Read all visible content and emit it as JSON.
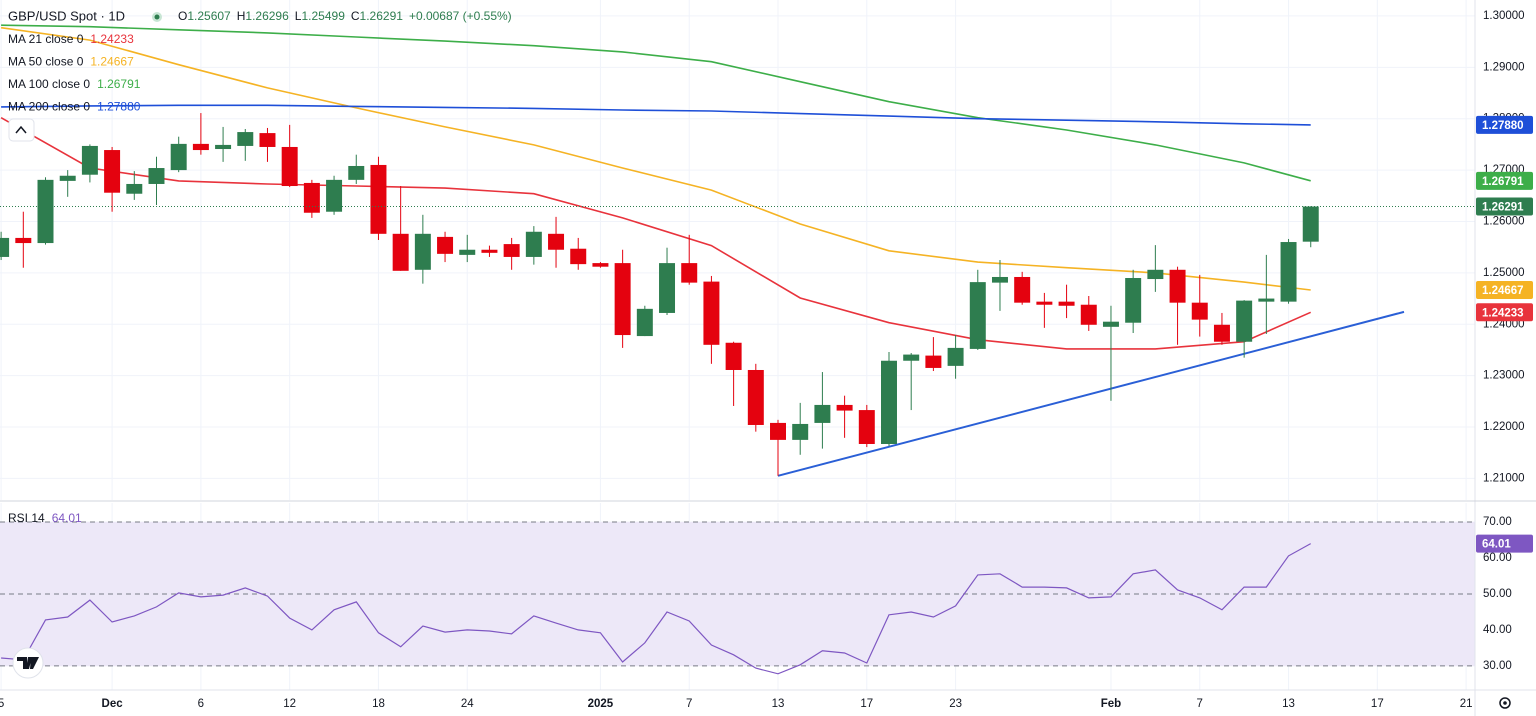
{
  "chart_data": [
    {
      "type": "candlestick",
      "title": "GBP/USD Spot · 1D",
      "ohlc_legend": [
        {
          "key": "O",
          "value": "1.25607"
        },
        {
          "key": "H",
          "value": "1.26296"
        },
        {
          "key": "L",
          "value": "1.25499"
        },
        {
          "key": "C",
          "value": "1.26291"
        }
      ],
      "change_label": "+0.00687 (+0.55%)",
      "up_color": "#2e7d4f",
      "down_color": "#e4020f",
      "x": [
        0,
        1,
        2,
        3,
        4,
        5,
        6,
        7,
        8,
        9,
        10,
        11,
        12,
        13,
        14,
        15,
        16,
        17,
        18,
        19,
        20,
        21,
        22,
        23,
        24,
        25,
        26,
        27,
        28,
        29,
        30,
        31,
        32,
        33,
        34,
        35,
        36,
        37,
        38,
        39,
        40,
        41,
        42,
        43,
        44,
        45,
        46,
        47,
        48,
        49,
        50,
        51,
        52,
        53,
        54,
        55,
        56,
        57,
        58,
        59
      ],
      "open": [
        1.2531,
        1.2568,
        1.2558,
        1.2679,
        1.2691,
        1.2739,
        1.2654,
        1.2673,
        1.27,
        1.2751,
        1.2741,
        1.2747,
        1.2772,
        1.2745,
        1.2675,
        1.2619,
        1.2681,
        1.271,
        1.2576,
        1.2506,
        1.257,
        1.2535,
        1.2545,
        1.2556,
        1.2531,
        1.2576,
        1.2547,
        1.2519,
        1.2519,
        1.2377,
        1.2422,
        1.2519,
        1.2483,
        1.2364,
        1.2311,
        1.2208,
        1.2175,
        1.2208,
        1.2243,
        1.2233,
        1.2167,
        1.2329,
        1.2339,
        1.2319,
        1.2352,
        1.2481,
        1.2492,
        1.2444,
        1.2444,
        1.2438,
        1.2395,
        1.2403,
        1.2488,
        1.2506,
        1.2442,
        1.2399,
        1.2366,
        1.2444,
        1.2444,
        1.25607
      ],
      "high": [
        1.258,
        1.2619,
        1.2686,
        1.27,
        1.275,
        1.2745,
        1.2698,
        1.2726,
        1.2765,
        1.2811,
        1.2784,
        1.278,
        1.2782,
        1.2788,
        1.2681,
        1.2689,
        1.273,
        1.2726,
        1.2669,
        1.2613,
        1.258,
        1.2574,
        1.2553,
        1.2568,
        1.2591,
        1.2609,
        1.2568,
        1.2521,
        1.2545,
        1.2436,
        1.2549,
        1.2574,
        1.2494,
        1.2366,
        1.2323,
        1.2214,
        1.2247,
        1.2307,
        1.2261,
        1.2243,
        1.2346,
        1.2344,
        1.2375,
        1.2379,
        1.2506,
        1.2525,
        1.2502,
        1.2461,
        1.2477,
        1.2455,
        1.2436,
        1.2506,
        1.2554,
        1.2512,
        1.2496,
        1.2422,
        1.2447,
        1.2535,
        1.2566,
        1.26296
      ],
      "low": [
        1.2525,
        1.251,
        1.2555,
        1.2648,
        1.2676,
        1.2619,
        1.2642,
        1.2632,
        1.2696,
        1.273,
        1.2716,
        1.2718,
        1.2716,
        1.2667,
        1.2607,
        1.2613,
        1.2673,
        1.2564,
        1.2504,
        1.2479,
        1.2521,
        1.2521,
        1.2531,
        1.2506,
        1.2516,
        1.251,
        1.2506,
        1.251,
        1.2354,
        1.2377,
        1.2418,
        1.2477,
        1.2323,
        1.2241,
        1.2191,
        1.2105,
        1.2146,
        1.2158,
        1.2179,
        1.2161,
        1.2163,
        1.2233,
        1.2309,
        1.2294,
        1.235,
        1.2426,
        1.2438,
        1.2393,
        1.2412,
        1.2387,
        1.2251,
        1.2383,
        1.2463,
        1.236,
        1.2376,
        1.236,
        1.2335,
        1.2381,
        1.244,
        1.25499
      ],
      "close": [
        1.2568,
        1.2558,
        1.2681,
        1.2689,
        1.2747,
        1.2656,
        1.2673,
        1.2704,
        1.2751,
        1.2739,
        1.2749,
        1.2774,
        1.2745,
        1.2669,
        1.2617,
        1.2681,
        1.2708,
        1.2576,
        1.2504,
        1.2576,
        1.2537,
        1.2545,
        1.2539,
        1.2531,
        1.258,
        1.2545,
        1.2517,
        1.2512,
        1.2379,
        1.243,
        1.2519,
        1.2481,
        1.236,
        1.2311,
        1.2204,
        1.2175,
        1.2206,
        1.2243,
        1.2232,
        1.2167,
        1.2329,
        1.2341,
        1.2315,
        1.2354,
        1.2482,
        1.2492,
        1.2442,
        1.2438,
        1.2436,
        1.2399,
        1.2405,
        1.249,
        1.2506,
        1.2442,
        1.2409,
        1.2366,
        1.2446,
        1.245,
        1.256,
        1.26291
      ],
      "last_price_label": "1.26291",
      "xlim": [
        -0.05,
        66.4
      ],
      "xticks": [
        {
          "value": 0,
          "label": "5"
        },
        {
          "value": 5,
          "label": "Dec"
        },
        {
          "value": 9,
          "label": "6"
        },
        {
          "value": 13,
          "label": "12"
        },
        {
          "value": 17,
          "label": "18"
        },
        {
          "value": 21,
          "label": "24"
        },
        {
          "value": 27,
          "label": "2025"
        },
        {
          "value": 31,
          "label": "7"
        },
        {
          "value": 35,
          "label": "13"
        },
        {
          "value": 39,
          "label": "17"
        },
        {
          "value": 43,
          "label": "23"
        },
        {
          "value": 50,
          "label": "Feb"
        },
        {
          "value": 54,
          "label": "7"
        },
        {
          "value": 58,
          "label": "13"
        },
        {
          "value": 62,
          "label": "17"
        },
        {
          "value": 66,
          "label": "21"
        }
      ],
      "ylim": [
        1.2058,
        1.3031
      ],
      "yticks": [
        {
          "value": 1.3,
          "label": "1.30000"
        },
        {
          "value": 1.29,
          "label": "1.29000"
        },
        {
          "value": 1.28,
          "label": "1.28000"
        },
        {
          "value": 1.27,
          "label": "1.27000"
        },
        {
          "value": 1.26,
          "label": "1.26000"
        },
        {
          "value": 1.25,
          "label": "1.25000"
        },
        {
          "value": 1.24,
          "label": "1.24000"
        },
        {
          "value": 1.23,
          "label": "1.23000"
        },
        {
          "value": 1.22,
          "label": "1.22000"
        },
        {
          "value": 1.21,
          "label": "1.21000"
        }
      ],
      "grid": true,
      "series": [
        {
          "name": "MA 21 close 0",
          "color": "#e8333c",
          "last_label": "1.24233",
          "x": [
            0,
            4,
            8,
            12,
            16,
            20,
            24,
            28,
            32,
            36,
            40,
            44,
            48,
            52,
            56,
            59
          ],
          "values": [
            1.2802,
            1.2704,
            1.2679,
            1.2673,
            1.2669,
            1.2665,
            1.2654,
            1.2607,
            1.2553,
            1.2451,
            1.2403,
            1.237,
            1.2352,
            1.2352,
            1.2366,
            1.24233
          ]
        },
        {
          "name": "MA 50 close 0",
          "color": "#f5b324",
          "last_label": "1.24667",
          "x": [
            0,
            4,
            8,
            12,
            16,
            20,
            24,
            28,
            32,
            36,
            40,
            44,
            48,
            52,
            56,
            59
          ],
          "values": [
            1.2977,
            1.2953,
            1.2905,
            1.286,
            1.2821,
            1.2784,
            1.2749,
            1.2704,
            1.2661,
            1.2595,
            1.2543,
            1.2521,
            1.251,
            1.25,
            1.2482,
            1.24667
          ]
        },
        {
          "name": "MA 100 close 0",
          "color": "#3dae49",
          "last_label": "1.26791",
          "x": [
            0,
            4,
            8,
            12,
            16,
            20,
            24,
            28,
            32,
            36,
            40,
            44,
            48,
            52,
            56,
            59
          ],
          "values": [
            1.2982,
            1.2979,
            1.2973,
            1.2967,
            1.2959,
            1.2951,
            1.2942,
            1.293,
            1.2911,
            1.2872,
            1.2833,
            1.2802,
            1.2778,
            1.2749,
            1.2714,
            1.26791
          ]
        },
        {
          "name": "MA 200 close 0",
          "color": "#1e4fd8",
          "last_label": "1.27880",
          "x": [
            0,
            4,
            8,
            12,
            16,
            20,
            24,
            28,
            32,
            36,
            40,
            44,
            48,
            52,
            56,
            59
          ],
          "values": [
            1.2823,
            1.2825,
            1.2826,
            1.2826,
            1.2824,
            1.2822,
            1.282,
            1.2817,
            1.2815,
            1.281,
            1.2805,
            1.28,
            1.2797,
            1.2794,
            1.279,
            1.2788
          ]
        }
      ],
      "trendline": {
        "color": "#2a5fd6",
        "x": [
          35,
          63.2
        ],
        "values": [
          1.2105,
          1.2424
        ]
      }
    },
    {
      "type": "line",
      "x": [
        0,
        1,
        2,
        3,
        4,
        5,
        6,
        7,
        8,
        9,
        10,
        11,
        12,
        13,
        14,
        15,
        16,
        17,
        18,
        19,
        20,
        21,
        22,
        23,
        24,
        25,
        26,
        27,
        28,
        29,
        30,
        31,
        32,
        33,
        34,
        35,
        36,
        37,
        38,
        39,
        40,
        41,
        42,
        43,
        44,
        45,
        46,
        47,
        48,
        49,
        50,
        51,
        52,
        53,
        54,
        55,
        56,
        57,
        58,
        59
      ],
      "xlim": [
        -0.05,
        66.4
      ],
      "ylim": [
        23.3,
        75.3
      ],
      "yticks": [
        {
          "value": 70,
          "label": "70.00"
        },
        {
          "value": 60,
          "label": "60.00"
        },
        {
          "value": 50,
          "label": "50.00"
        },
        {
          "value": 40,
          "label": "40.00"
        },
        {
          "value": 30,
          "label": "30.00"
        }
      ],
      "levels": [
        70,
        50,
        30
      ],
      "band": [
        30,
        70
      ],
      "band_color": "#ede8f8",
      "series": [
        {
          "name": "RSI 14",
          "color": "#7e57c2",
          "values": [
            32.2,
            31.7,
            42.8,
            43.6,
            48.3,
            42.2,
            43.9,
            46.4,
            50.3,
            49.2,
            49.7,
            51.7,
            49.4,
            43.3,
            40,
            45.6,
            47.8,
            39.2,
            35.3,
            41.1,
            39.4,
            40,
            39.7,
            38.9,
            43.9,
            41.9,
            40,
            39.2,
            31.1,
            36.4,
            45,
            42.5,
            35.8,
            33.1,
            29.4,
            27.8,
            30.3,
            34.2,
            33.6,
            30.8,
            44.2,
            45,
            43.6,
            46.7,
            55.3,
            55.6,
            51.9,
            51.9,
            51.7,
            48.9,
            49.2,
            55.6,
            56.7,
            51.1,
            48.9,
            45.6,
            51.9,
            51.9,
            60.6,
            64.01
          ]
        }
      ]
    }
  ]
}
